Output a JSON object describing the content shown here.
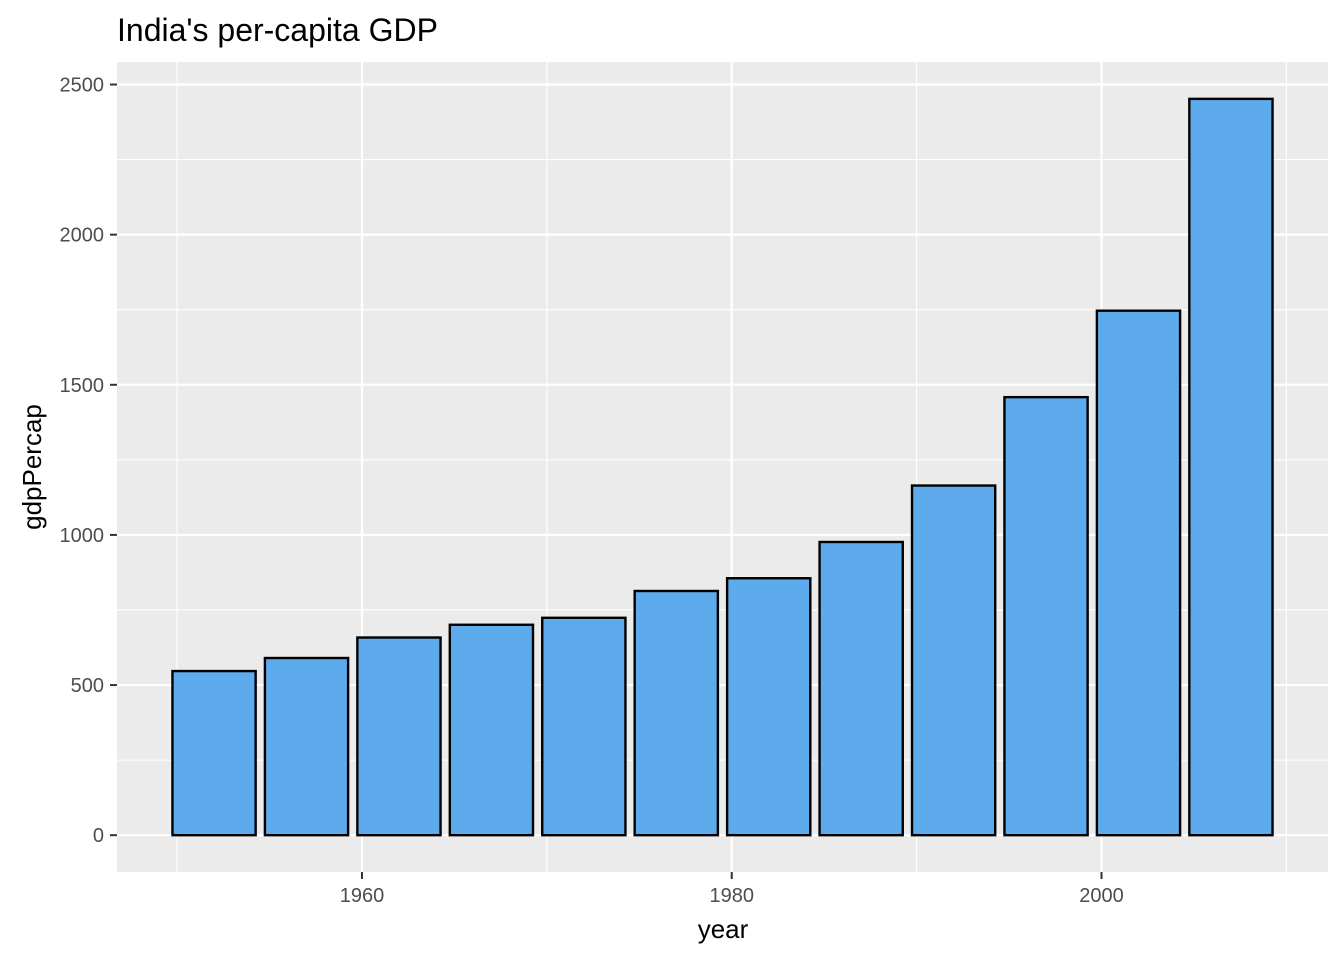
{
  "chart_data": {
    "type": "bar",
    "title": "India's per-capita GDP",
    "xlabel": "year",
    "ylabel": "gdpPercap",
    "x": [
      1952,
      1957,
      1962,
      1967,
      1972,
      1977,
      1982,
      1987,
      1992,
      1997,
      2002,
      2007
    ],
    "values": [
      546.6,
      590.1,
      658.3,
      700.8,
      724.0,
      813.3,
      855.7,
      976.5,
      1164.4,
      1458.8,
      1746.8,
      2452.2
    ],
    "xlim": [
      1946.75,
      2012.25
    ],
    "ylim": [
      -122.6,
      2575
    ],
    "x_ticks": [
      1960,
      1980,
      2000
    ],
    "x_tick_labels": [
      "1960",
      "1980",
      "2000"
    ],
    "x_minor_ticks": [
      1950,
      1970,
      1990,
      2010
    ],
    "y_ticks": [
      0,
      500,
      1000,
      1500,
      2000,
      2500
    ],
    "y_tick_labels": [
      "0",
      "500",
      "1000",
      "1500",
      "2000",
      "2500"
    ],
    "y_minor_ticks": [
      250,
      750,
      1250,
      1750,
      2250
    ],
    "bar_width": 4.5,
    "grid": true,
    "legend": "none",
    "colors": {
      "bar_fill": "#5dabed",
      "bar_outline": "#000000",
      "panel": "#ebebeb",
      "grid": "#ffffff"
    }
  }
}
